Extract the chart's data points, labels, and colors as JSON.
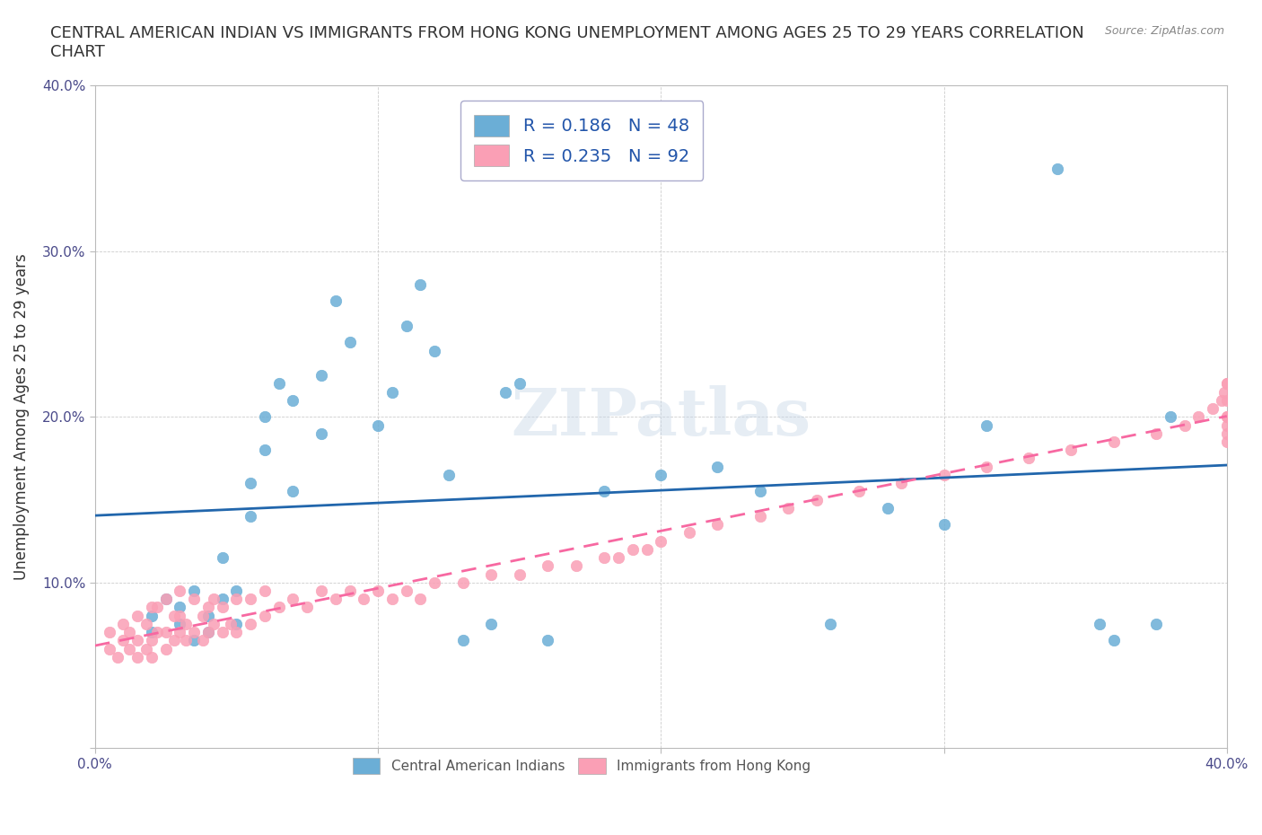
{
  "title": "CENTRAL AMERICAN INDIAN VS IMMIGRANTS FROM HONG KONG UNEMPLOYMENT AMONG AGES 25 TO 29 YEARS CORRELATION\nCHART",
  "source_text": "Source: ZipAtlas.com",
  "xlabel": "",
  "ylabel": "Unemployment Among Ages 25 to 29 years",
  "xlim": [
    0.0,
    0.4
  ],
  "ylim": [
    0.0,
    0.4
  ],
  "xticks": [
    0.0,
    0.1,
    0.2,
    0.3,
    0.4
  ],
  "yticks": [
    0.0,
    0.1,
    0.2,
    0.3,
    0.4
  ],
  "xticklabels": [
    "0.0%",
    "",
    "",
    "",
    "40.0%"
  ],
  "yticklabels": [
    "",
    "10.0%",
    "20.0%",
    "30.0%",
    "40.0%"
  ],
  "blue_color": "#6baed6",
  "pink_color": "#fa9fb5",
  "blue_line_color": "#2166ac",
  "pink_line_color": "#f768a1",
  "blue_R": 0.186,
  "blue_N": 48,
  "pink_R": 0.235,
  "pink_N": 92,
  "watermark": "ZIPatlas",
  "legend_label_blue": "Central American Indians",
  "legend_label_pink": "Immigrants from Hong Kong",
  "blue_scatter_x": [
    0.02,
    0.02,
    0.025,
    0.03,
    0.03,
    0.035,
    0.035,
    0.04,
    0.04,
    0.045,
    0.045,
    0.05,
    0.05,
    0.055,
    0.055,
    0.06,
    0.06,
    0.065,
    0.07,
    0.07,
    0.08,
    0.08,
    0.085,
    0.09,
    0.1,
    0.105,
    0.11,
    0.115,
    0.12,
    0.125,
    0.13,
    0.14,
    0.145,
    0.15,
    0.16,
    0.18,
    0.2,
    0.22,
    0.235,
    0.26,
    0.28,
    0.3,
    0.315,
    0.34,
    0.355,
    0.36,
    0.375,
    0.38
  ],
  "blue_scatter_y": [
    0.07,
    0.08,
    0.09,
    0.075,
    0.085,
    0.065,
    0.095,
    0.07,
    0.08,
    0.09,
    0.115,
    0.075,
    0.095,
    0.14,
    0.16,
    0.18,
    0.2,
    0.22,
    0.155,
    0.21,
    0.19,
    0.225,
    0.27,
    0.245,
    0.195,
    0.215,
    0.255,
    0.28,
    0.24,
    0.165,
    0.065,
    0.075,
    0.215,
    0.22,
    0.065,
    0.155,
    0.165,
    0.17,
    0.155,
    0.075,
    0.145,
    0.135,
    0.195,
    0.35,
    0.075,
    0.065,
    0.075,
    0.2
  ],
  "pink_scatter_x": [
    0.005,
    0.005,
    0.008,
    0.01,
    0.01,
    0.012,
    0.012,
    0.015,
    0.015,
    0.015,
    0.018,
    0.018,
    0.02,
    0.02,
    0.02,
    0.022,
    0.022,
    0.025,
    0.025,
    0.025,
    0.028,
    0.028,
    0.03,
    0.03,
    0.03,
    0.032,
    0.032,
    0.035,
    0.035,
    0.038,
    0.038,
    0.04,
    0.04,
    0.042,
    0.042,
    0.045,
    0.045,
    0.048,
    0.05,
    0.05,
    0.055,
    0.055,
    0.06,
    0.06,
    0.065,
    0.07,
    0.075,
    0.08,
    0.085,
    0.09,
    0.095,
    0.1,
    0.105,
    0.11,
    0.115,
    0.12,
    0.13,
    0.14,
    0.15,
    0.16,
    0.17,
    0.18,
    0.185,
    0.19,
    0.195,
    0.2,
    0.21,
    0.22,
    0.235,
    0.245,
    0.255,
    0.27,
    0.285,
    0.3,
    0.315,
    0.33,
    0.345,
    0.36,
    0.375,
    0.385,
    0.39,
    0.395,
    0.398,
    0.399,
    0.4,
    0.4,
    0.4,
    0.4,
    0.4,
    0.4,
    0.4,
    0.4
  ],
  "pink_scatter_y": [
    0.06,
    0.07,
    0.055,
    0.065,
    0.075,
    0.06,
    0.07,
    0.055,
    0.065,
    0.08,
    0.06,
    0.075,
    0.055,
    0.065,
    0.085,
    0.07,
    0.085,
    0.06,
    0.07,
    0.09,
    0.065,
    0.08,
    0.07,
    0.08,
    0.095,
    0.065,
    0.075,
    0.07,
    0.09,
    0.065,
    0.08,
    0.07,
    0.085,
    0.075,
    0.09,
    0.07,
    0.085,
    0.075,
    0.07,
    0.09,
    0.075,
    0.09,
    0.08,
    0.095,
    0.085,
    0.09,
    0.085,
    0.095,
    0.09,
    0.095,
    0.09,
    0.095,
    0.09,
    0.095,
    0.09,
    0.1,
    0.1,
    0.105,
    0.105,
    0.11,
    0.11,
    0.115,
    0.115,
    0.12,
    0.12,
    0.125,
    0.13,
    0.135,
    0.14,
    0.145,
    0.15,
    0.155,
    0.16,
    0.165,
    0.17,
    0.175,
    0.18,
    0.185,
    0.19,
    0.195,
    0.2,
    0.205,
    0.21,
    0.215,
    0.22,
    0.2,
    0.195,
    0.185,
    0.19,
    0.21,
    0.22,
    0.2
  ]
}
